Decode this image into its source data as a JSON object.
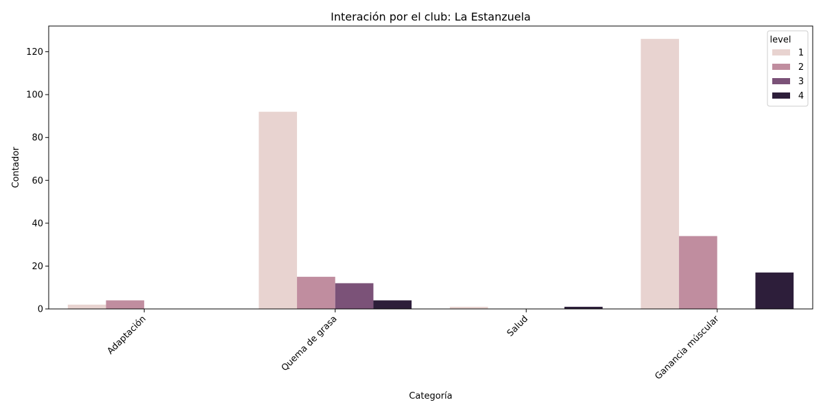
{
  "chart_data": {
    "type": "bar",
    "title": "Interación por el club: La Estanzuela",
    "xlabel": "Categoría",
    "ylabel": "Contador",
    "categories": [
      "Adaptación",
      "Quema de grasa",
      "Salud",
      "Ganancia múscular"
    ],
    "ylim": [
      0,
      132
    ],
    "yticks": [
      0,
      20,
      40,
      60,
      80,
      100,
      120
    ],
    "legend": {
      "title": "level",
      "position": "top-right"
    },
    "series": [
      {
        "name": "1",
        "color": "#e8d3d0",
        "values": [
          2,
          92,
          1,
          126
        ]
      },
      {
        "name": "2",
        "color": "#c08d9f",
        "values": [
          4,
          15,
          0,
          34
        ]
      },
      {
        "name": "3",
        "color": "#7b5278",
        "values": [
          0,
          12,
          0,
          0
        ]
      },
      {
        "name": "4",
        "color": "#2d1e3a",
        "values": [
          0,
          4,
          1,
          17
        ]
      }
    ],
    "grid": false
  }
}
